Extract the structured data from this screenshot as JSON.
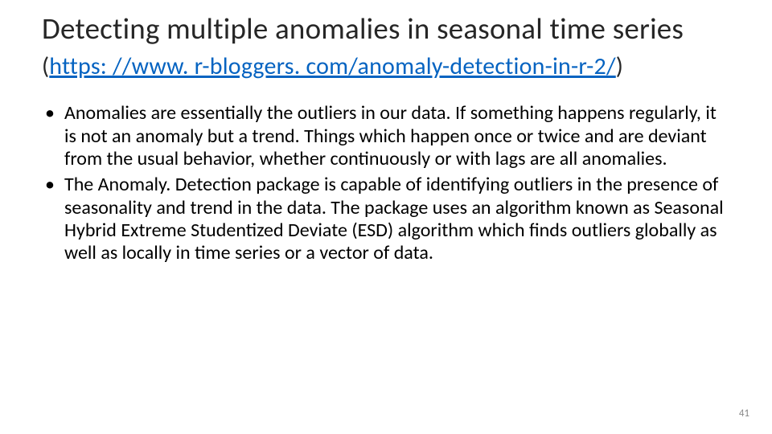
{
  "title": {
    "main": "Detecting multiple anomalies in seasonal time series ",
    "paren_open": "(",
    "link_text": "https: //www. r-bloggers. com/anomaly-detection-in-r-2/",
    "link_href": "https://www.r-bloggers.com/anomaly-detection-in-r-2/",
    "paren_close": ")"
  },
  "bullets": [
    "Anomalies are essentially the outliers in our data. If something happens regularly, it is not an anomaly but a trend. Things which happen once or twice and are deviant from the usual behavior, whether continuously or with lags are all anomalies.",
    "The Anomaly. Detection package is capable of identifying outliers in the presence of seasonality and trend in the data. The package uses an algorithm known as Seasonal Hybrid Extreme Studentized Deviate (ESD) algorithm which finds outliers globally as well as locally in time series or a vector of data."
  ],
  "page_number": "41",
  "colors": {
    "link": "#0563c1",
    "text": "#000000",
    "title": "#262626",
    "pageno": "#8a8a8a",
    "background": "#ffffff"
  },
  "fonts": {
    "title_size_pt": 37,
    "paren_size_pt": 30,
    "body_size_pt": 24,
    "pageno_size_pt": 13
  }
}
